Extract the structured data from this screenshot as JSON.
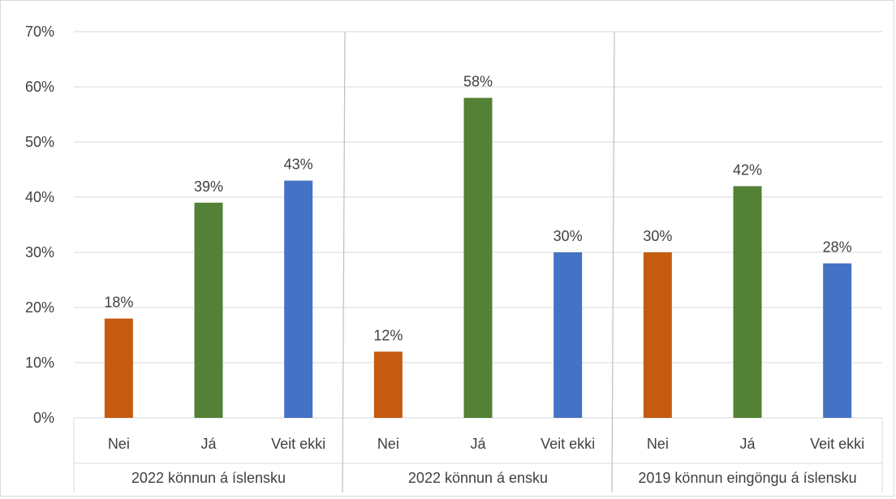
{
  "chart_data": {
    "type": "bar",
    "y_ticks": [
      "0%",
      "10%",
      "20%",
      "30%",
      "40%",
      "50%",
      "60%",
      "70%"
    ],
    "ylim": [
      0,
      70
    ],
    "grid": true,
    "legend": "none",
    "groups": [
      {
        "label": "2022 könnun á íslensku",
        "categories": [
          "Nei",
          "Já",
          "Veit ekki"
        ],
        "values": [
          18,
          39,
          43
        ],
        "value_labels": [
          "18%",
          "39%",
          "43%"
        ]
      },
      {
        "label": "2022 könnun á ensku",
        "categories": [
          "Nei",
          "Já",
          "Veit ekki"
        ],
        "values": [
          12,
          58,
          30
        ],
        "value_labels": [
          "12%",
          "58%",
          "30%"
        ]
      },
      {
        "label": "2019 könnun eingöngu á íslensku",
        "categories": [
          "Nei",
          "Já",
          "Veit ekki"
        ],
        "values": [
          30,
          42,
          28
        ],
        "value_labels": [
          "30%",
          "42%",
          "28%"
        ]
      }
    ],
    "colors": {
      "Nei": "#c55a11",
      "Já": "#538135",
      "Veit ekki": "#4472c4",
      "grid": "#d9d9d9",
      "divider": "#bfbfbf"
    }
  }
}
